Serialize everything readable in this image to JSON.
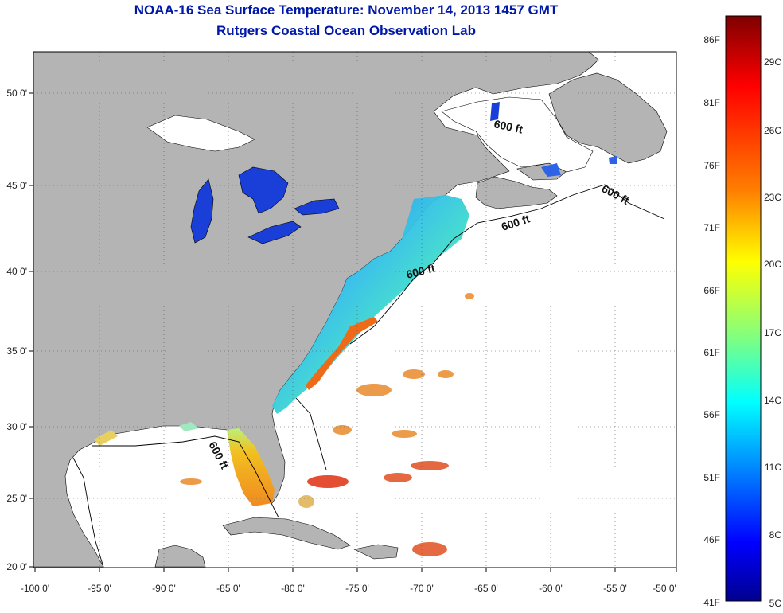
{
  "title_line1": "NOAA-16 Sea Surface Temperature:  November 14, 2013 1457 GMT",
  "title_line2": "Rutgers Coastal Ocean Observation Lab",
  "map": {
    "lon_ticks": [
      "-100 0'",
      "-95 0'",
      "-90 0'",
      "-85 0'",
      "-80 0'",
      "-75 0'",
      "-70 0'",
      "-65 0'",
      "-60 0'",
      "-55 0'",
      "-50 0'"
    ],
    "lat_ticks": [
      "20 0'",
      "25 0'",
      "30 0'",
      "35 0'",
      "40 0'",
      "45 0'",
      "50 0'"
    ],
    "isobath_labels": [
      "600 ft",
      "600 ft",
      "600 ft",
      "600 ft"
    ],
    "colors": {
      "land": "#b4b4b4",
      "ocean_nodata": "#ffffff",
      "water_cold": "#1a3fd8"
    }
  },
  "colorbar": {
    "fahrenheit": [
      "86F",
      "81F",
      "76F",
      "71F",
      "66F",
      "61F",
      "56F",
      "51F",
      "46F",
      "41F"
    ],
    "celsius": [
      "29C",
      "26C",
      "23C",
      "20C",
      "17C",
      "14C",
      "11C",
      "8C",
      "5C"
    ],
    "gradient": [
      "#7f0000",
      "#ff0000",
      "#ff8000",
      "#ffff00",
      "#80ff80",
      "#00ffff",
      "#0080ff",
      "#0000ff",
      "#00008f"
    ]
  }
}
